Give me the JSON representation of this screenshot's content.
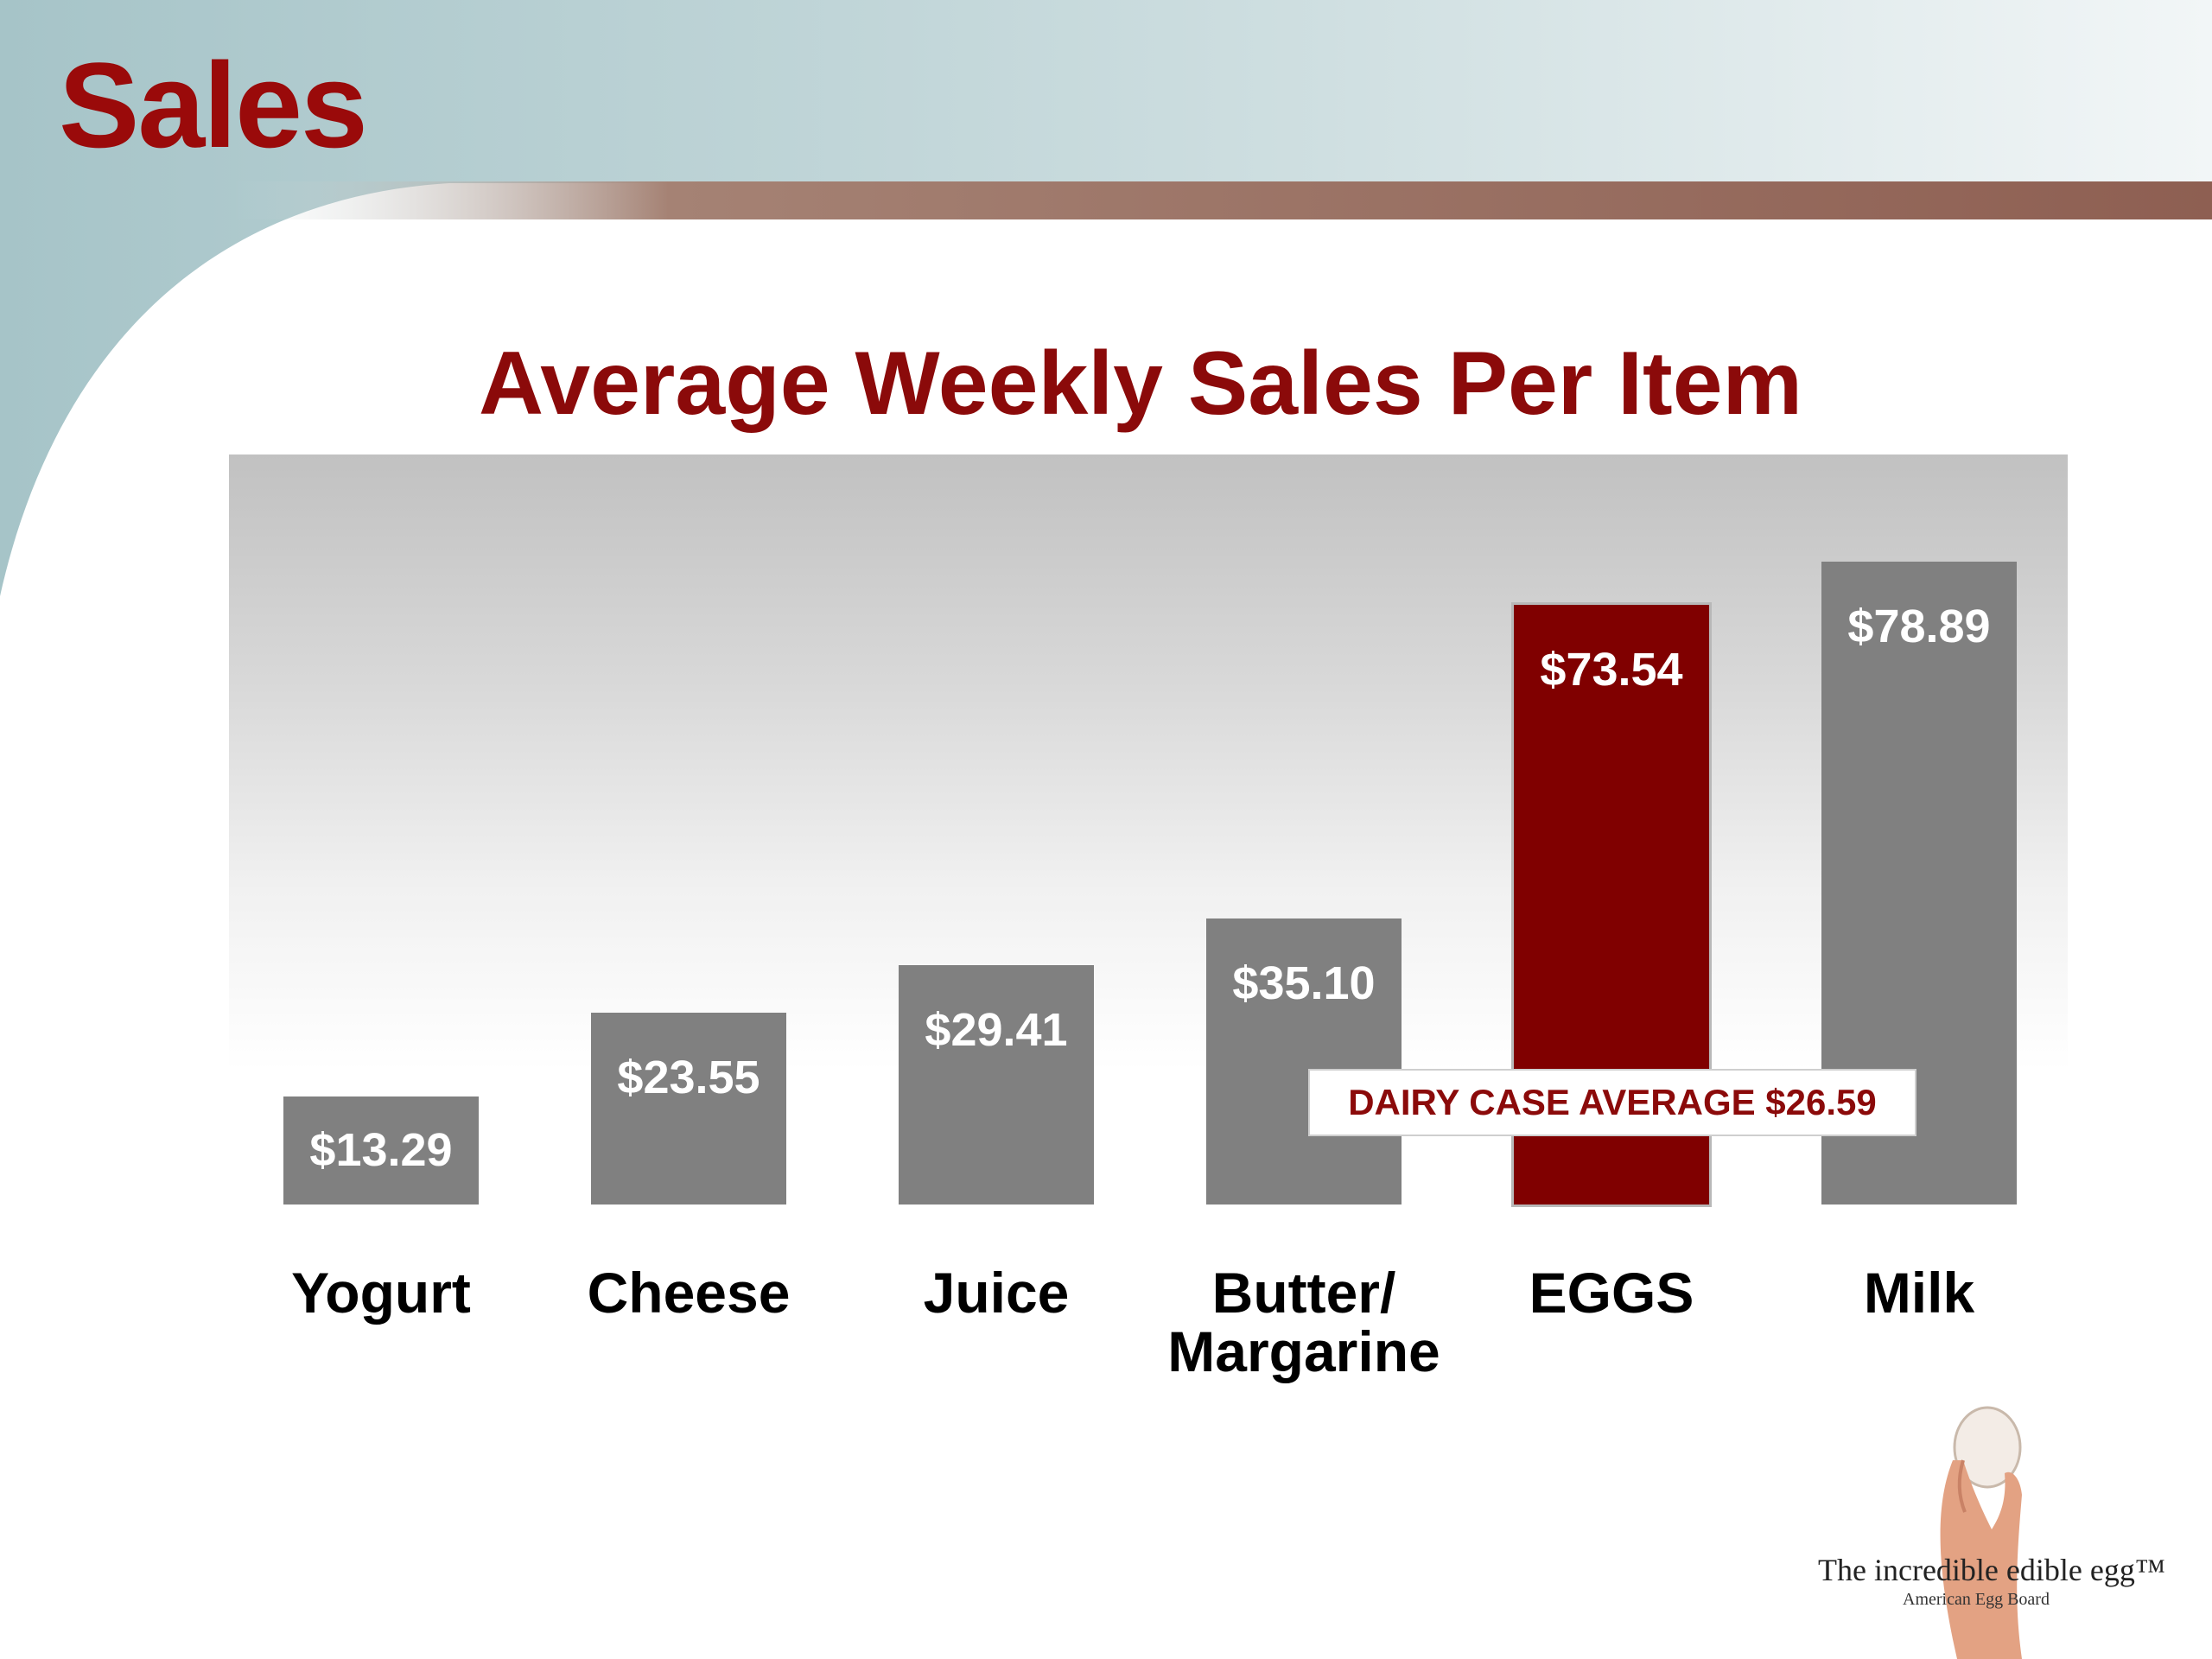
{
  "slide": {
    "title": "Sales",
    "logo": {
      "text": "The incredible edible egg™",
      "subtext": "American Egg Board"
    }
  },
  "colors": {
    "title": "#9a0a0a",
    "bar": "#808080",
    "highlight_bar": "#800000",
    "accent_band": "#8f6257",
    "header_teal": "#a9c7cb"
  },
  "chart_data": {
    "type": "bar",
    "title": "Average Weekly Sales Per Item",
    "categories": [
      "Yogurt",
      "Cheese",
      "Juice",
      "Butter/\nMargarine",
      "EGGS",
      "Milk"
    ],
    "values": [
      13.29,
      23.55,
      29.41,
      35.1,
      73.54,
      78.89
    ],
    "value_labels": [
      "$13.29",
      "$23.55",
      "$29.41",
      "$35.10",
      "$73.54",
      "$78.89"
    ],
    "highlight_index": 4,
    "reference_line": {
      "label": "DAIRY CASE AVERAGE $26.59",
      "value": 26.59
    },
    "ylim": [
      0,
      92
    ],
    "grid": false,
    "legend": "none"
  }
}
